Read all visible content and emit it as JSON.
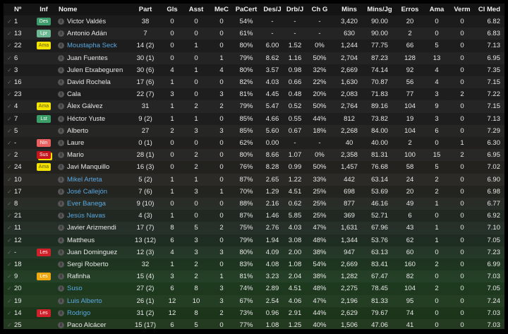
{
  "headers": {
    "no": "Nº",
    "inf": "Inf",
    "name": "Nome",
    "part": "Part",
    "gls": "Gls",
    "asst": "Asst",
    "mec": "MeC",
    "pacert": "PaCert",
    "desj": "Des/J",
    "drbj": "Drb/J",
    "chg": "Ch G",
    "mins": "Mins",
    "minsjg": "Mins/Jg",
    "erros": "Erros",
    "ama": "Ama",
    "verm": "Verm",
    "clmed": "Cl Med"
  },
  "badge_colors": {
    "Des": "#3d9a6a",
    "Lpr": "#6db893",
    "Ama": "#f2e400",
    "Lst": "#3c9e68",
    "Nin": "#e86060",
    "Sus": "#c8141c",
    "Les": "#d0202a",
    "Les-minor": "#f0a810"
  },
  "link_color": "#5aa8e0",
  "rows": [
    {
      "no": "1",
      "inf": "Des",
      "name": "Victor Valdés",
      "part": "38",
      "gls": "0",
      "asst": "0",
      "mec": "0",
      "pacert": "54%",
      "desj": "-",
      "drbj": "-",
      "chg": "-",
      "mins": "3,420",
      "minsjg": "90.00",
      "erros": "20",
      "ama": "0",
      "verm": "0",
      "clmed": "6.82"
    },
    {
      "no": "13",
      "inf": "Lpr",
      "name": "Antonio Adán",
      "part": "7",
      "gls": "0",
      "asst": "0",
      "mec": "0",
      "pacert": "61%",
      "desj": "-",
      "drbj": "-",
      "chg": "-",
      "mins": "630",
      "minsjg": "90.00",
      "erros": "2",
      "ama": "0",
      "verm": "0",
      "clmed": "6.83"
    },
    {
      "no": "22",
      "inf": "Ama",
      "name": "Moustapha Seck",
      "loan": true,
      "part": "14 (2)",
      "gls": "0",
      "asst": "1",
      "mec": "0",
      "pacert": "80%",
      "desj": "6.00",
      "drbj": "1.52",
      "chg": "0%",
      "mins": "1,244",
      "minsjg": "77.75",
      "erros": "66",
      "ama": "5",
      "verm": "0",
      "clmed": "7.13"
    },
    {
      "no": "6",
      "inf": "",
      "name": "Juan Fuentes",
      "part": "30 (1)",
      "gls": "0",
      "asst": "0",
      "mec": "1",
      "pacert": "79%",
      "desj": "8.62",
      "drbj": "1.16",
      "chg": "50%",
      "mins": "2,704",
      "minsjg": "87.23",
      "erros": "128",
      "ama": "13",
      "verm": "0",
      "clmed": "6.95"
    },
    {
      "no": "3",
      "inf": "",
      "name": "Julen Etxabeguren",
      "part": "30 (6)",
      "gls": "4",
      "asst": "1",
      "mec": "4",
      "pacert": "80%",
      "desj": "3.57",
      "drbj": "0.98",
      "chg": "32%",
      "mins": "2,669",
      "minsjg": "74.14",
      "erros": "92",
      "ama": "4",
      "verm": "0",
      "clmed": "7.35"
    },
    {
      "no": "16",
      "inf": "",
      "name": "David Rochela",
      "part": "17 (6)",
      "gls": "1",
      "asst": "0",
      "mec": "0",
      "pacert": "82%",
      "desj": "4.03",
      "drbj": "0.66",
      "chg": "22%",
      "mins": "1,630",
      "minsjg": "70.87",
      "erros": "56",
      "ama": "4",
      "verm": "0",
      "clmed": "7.15"
    },
    {
      "no": "23",
      "inf": "",
      "name": "Cala",
      "part": "22 (7)",
      "gls": "3",
      "asst": "0",
      "mec": "3",
      "pacert": "81%",
      "desj": "4.45",
      "drbj": "0.48",
      "chg": "20%",
      "mins": "2,083",
      "minsjg": "71.83",
      "erros": "77",
      "ama": "3",
      "verm": "2",
      "clmed": "7.22"
    },
    {
      "no": "4",
      "inf": "Ama",
      "name": "Álex Gálvez",
      "part": "31",
      "gls": "1",
      "asst": "2",
      "mec": "2",
      "pacert": "79%",
      "desj": "5.47",
      "drbj": "0.52",
      "chg": "50%",
      "mins": "2,764",
      "minsjg": "89.16",
      "erros": "104",
      "ama": "9",
      "verm": "0",
      "clmed": "7.15"
    },
    {
      "no": "7",
      "inf": "Lst",
      "name": "Héctor Yuste",
      "part": "9 (2)",
      "gls": "1",
      "asst": "1",
      "mec": "0",
      "pacert": "85%",
      "desj": "4.66",
      "drbj": "0.55",
      "chg": "44%",
      "mins": "812",
      "minsjg": "73.82",
      "erros": "19",
      "ama": "3",
      "verm": "0",
      "clmed": "7.13"
    },
    {
      "no": "5",
      "inf": "",
      "name": "Alberto",
      "part": "27",
      "gls": "2",
      "asst": "3",
      "mec": "3",
      "pacert": "85%",
      "desj": "5.60",
      "drbj": "0.67",
      "chg": "18%",
      "mins": "2,268",
      "minsjg": "84.00",
      "erros": "104",
      "ama": "6",
      "verm": "0",
      "clmed": "7.29"
    },
    {
      "no": "-",
      "inf": "Nin",
      "name": "Laure",
      "part": "0 (1)",
      "gls": "0",
      "asst": "0",
      "mec": "0",
      "pacert": "62%",
      "desj": "0.00",
      "drbj": "-",
      "chg": "-",
      "mins": "40",
      "minsjg": "40.00",
      "erros": "2",
      "ama": "0",
      "verm": "1",
      "clmed": "6.30"
    },
    {
      "no": "2",
      "inf": "Sus",
      "name": "Mario",
      "part": "28 (1)",
      "gls": "0",
      "asst": "2",
      "mec": "0",
      "pacert": "80%",
      "desj": "8.66",
      "drbj": "1.07",
      "chg": "0%",
      "mins": "2,358",
      "minsjg": "81.31",
      "erros": "100",
      "ama": "15",
      "verm": "2",
      "clmed": "6.95"
    },
    {
      "no": "24",
      "inf": "Ama",
      "name": "Javi Manquillo",
      "part": "16 (3)",
      "gls": "0",
      "asst": "2",
      "mec": "0",
      "pacert": "76%",
      "desj": "8.28",
      "drbj": "0.99",
      "chg": "50%",
      "mins": "1,457",
      "minsjg": "76.68",
      "erros": "58",
      "ama": "5",
      "verm": "0",
      "clmed": "7.02"
    },
    {
      "no": "10",
      "inf": "",
      "name": "Mikel Arteta",
      "loan": true,
      "part": "5 (2)",
      "gls": "1",
      "asst": "1",
      "mec": "0",
      "pacert": "87%",
      "desj": "2.65",
      "drbj": "1.22",
      "chg": "33%",
      "mins": "442",
      "minsjg": "63.14",
      "erros": "24",
      "ama": "2",
      "verm": "0",
      "clmed": "6.90"
    },
    {
      "no": "17",
      "inf": "",
      "name": "José Callejón",
      "loan": true,
      "part": "7 (6)",
      "gls": "1",
      "asst": "3",
      "mec": "1",
      "pacert": "70%",
      "desj": "1.29",
      "drbj": "4.51",
      "chg": "25%",
      "mins": "698",
      "minsjg": "53.69",
      "erros": "20",
      "ama": "2",
      "verm": "0",
      "clmed": "6.98"
    },
    {
      "no": "8",
      "inf": "",
      "name": "Ever Banega",
      "loan": true,
      "part": "9 (10)",
      "gls": "0",
      "asst": "0",
      "mec": "0",
      "pacert": "88%",
      "desj": "2.16",
      "drbj": "0.62",
      "chg": "25%",
      "mins": "877",
      "minsjg": "46.16",
      "erros": "49",
      "ama": "1",
      "verm": "0",
      "clmed": "6.77"
    },
    {
      "no": "21",
      "inf": "",
      "name": "Jesús Navas",
      "loan": true,
      "part": "4 (3)",
      "gls": "1",
      "asst": "0",
      "mec": "0",
      "pacert": "87%",
      "desj": "1.46",
      "drbj": "5.85",
      "chg": "25%",
      "mins": "369",
      "minsjg": "52.71",
      "erros": "6",
      "ama": "0",
      "verm": "0",
      "clmed": "6.92"
    },
    {
      "no": "11",
      "inf": "",
      "name": "Javier Arizmendi",
      "part": "17 (7)",
      "gls": "8",
      "asst": "5",
      "mec": "2",
      "pacert": "75%",
      "desj": "2.76",
      "drbj": "4.03",
      "chg": "47%",
      "mins": "1,631",
      "minsjg": "67.96",
      "erros": "43",
      "ama": "1",
      "verm": "0",
      "clmed": "7.10"
    },
    {
      "no": "12",
      "inf": "",
      "name": "Mattheus",
      "part": "13 (12)",
      "gls": "6",
      "asst": "3",
      "mec": "0",
      "pacert": "79%",
      "desj": "1.94",
      "drbj": "3.08",
      "chg": "48%",
      "mins": "1,344",
      "minsjg": "53.76",
      "erros": "62",
      "ama": "1",
      "verm": "0",
      "clmed": "7.05"
    },
    {
      "no": "-",
      "inf": "Les",
      "name": "Juan Dominguez",
      "part": "12 (3)",
      "gls": "4",
      "asst": "3",
      "mec": "3",
      "pacert": "80%",
      "desj": "4.09",
      "drbj": "2.00",
      "chg": "38%",
      "mins": "947",
      "minsjg": "63.13",
      "erros": "60",
      "ama": "0",
      "verm": "0",
      "clmed": "7.23"
    },
    {
      "no": "18",
      "inf": "",
      "name": "Sergi Roberto",
      "part": "32",
      "gls": "1",
      "asst": "2",
      "mec": "0",
      "pacert": "83%",
      "desj": "4.08",
      "drbj": "1.08",
      "chg": "54%",
      "mins": "2,669",
      "minsjg": "83.41",
      "erros": "160",
      "ama": "2",
      "verm": "0",
      "clmed": "6.99"
    },
    {
      "no": "9",
      "inf": "Les",
      "minor": true,
      "name": "Rafinha",
      "part": "15 (4)",
      "gls": "3",
      "asst": "2",
      "mec": "1",
      "pacert": "81%",
      "desj": "3.23",
      "drbj": "2.04",
      "chg": "38%",
      "mins": "1,282",
      "minsjg": "67.47",
      "erros": "82",
      "ama": "0",
      "verm": "0",
      "clmed": "7.03"
    },
    {
      "no": "20",
      "inf": "",
      "name": "Suso",
      "loan": true,
      "part": "27 (2)",
      "gls": "6",
      "asst": "8",
      "mec": "3",
      "pacert": "74%",
      "desj": "2.89",
      "drbj": "4.51",
      "chg": "48%",
      "mins": "2,275",
      "minsjg": "78.45",
      "erros": "104",
      "ama": "2",
      "verm": "0",
      "clmed": "7.05"
    },
    {
      "no": "19",
      "inf": "",
      "name": "Luis Alberto",
      "loan": true,
      "part": "26 (1)",
      "gls": "12",
      "asst": "10",
      "mec": "3",
      "pacert": "67%",
      "desj": "2.54",
      "drbj": "4.06",
      "chg": "47%",
      "mins": "2,196",
      "minsjg": "81.33",
      "erros": "95",
      "ama": "0",
      "verm": "0",
      "clmed": "7.24"
    },
    {
      "no": "14",
      "inf": "Les",
      "name": "Rodrigo",
      "loan": true,
      "part": "31 (2)",
      "gls": "12",
      "asst": "8",
      "mec": "2",
      "pacert": "73%",
      "desj": "0.96",
      "drbj": "2.91",
      "chg": "44%",
      "mins": "2,629",
      "minsjg": "79.67",
      "erros": "74",
      "ama": "0",
      "verm": "0",
      "clmed": "7.03"
    },
    {
      "no": "25",
      "inf": "",
      "name": "Paco Alcácer",
      "part": "15 (17)",
      "gls": "6",
      "asst": "5",
      "mec": "0",
      "pacert": "77%",
      "desj": "1.08",
      "drbj": "1.25",
      "chg": "40%",
      "mins": "1,506",
      "minsjg": "47.06",
      "erros": "41",
      "ama": "0",
      "verm": "0",
      "clmed": "7.03"
    }
  ]
}
